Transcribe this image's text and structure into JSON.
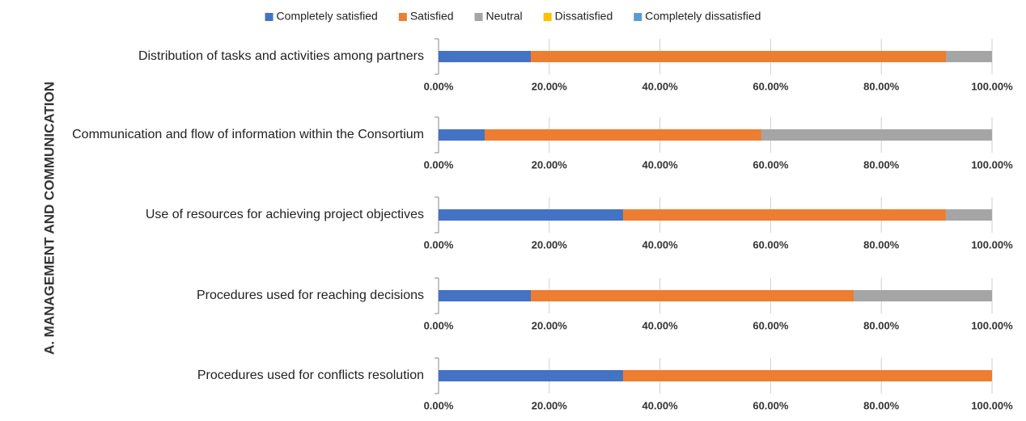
{
  "chart_data": {
    "type": "bar",
    "orientation": "horizontal",
    "stacked": true,
    "side_label": "A. MANAGEMENT AND COMMUNICATION",
    "categories": [
      "Distribution of tasks and activities among partners",
      "Communication and flow of information within the Consortium",
      "Use of resources for achieving project objectives",
      "Procedures used for reaching decisions",
      "Procedures used for conflicts resolution"
    ],
    "series": [
      {
        "name": "Completely satisfied",
        "color": "#4472c4",
        "values": [
          16.67,
          8.33,
          33.33,
          16.67,
          33.33
        ]
      },
      {
        "name": "Satisfied",
        "color": "#ed7d31",
        "values": [
          75,
          50,
          58.33,
          58.33,
          66.67
        ]
      },
      {
        "name": "Neutral",
        "color": "#a5a5a5",
        "values": [
          8.33,
          41.67,
          8.33,
          25,
          0
        ]
      },
      {
        "name": "Dissatisfied",
        "color": "#ffc000",
        "values": [
          0,
          0,
          0,
          0,
          0
        ]
      },
      {
        "name": "Completely dissatisfied",
        "color": "#5b9bd5",
        "values": [
          0,
          0,
          0,
          0,
          0
        ]
      }
    ],
    "xlim": [
      0,
      100
    ],
    "xticks": [
      {
        "value": 0,
        "label": "0.00%"
      },
      {
        "value": 20,
        "label": "20.00%"
      },
      {
        "value": 40,
        "label": "40.00%"
      },
      {
        "value": 60,
        "label": "60.00%"
      },
      {
        "value": 80,
        "label": "80.00%"
      },
      {
        "value": 100,
        "label": "100.00%"
      }
    ],
    "grid": true,
    "legend": "top"
  }
}
